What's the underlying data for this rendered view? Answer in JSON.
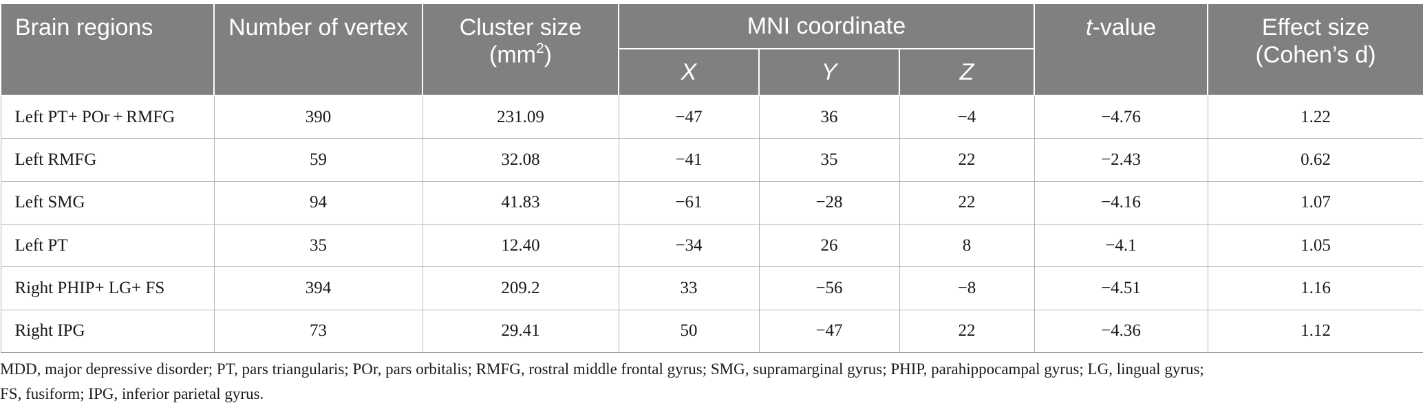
{
  "table": {
    "headers": {
      "regions": "Brain regions",
      "vertex": "Number of vertex",
      "cluster_main": "Cluster size",
      "cluster_unit": "(mm",
      "cluster_sup": "2",
      "cluster_close": ")",
      "mni": "MNI coordinate",
      "x": "X",
      "y": "Y",
      "z": "Z",
      "t_italic": "t",
      "t_rest": "-value",
      "effect_line1": "Effect size",
      "effect_line2": "(Cohen’s d)"
    },
    "rows": [
      {
        "region": "Left PT+ POr + RMFG",
        "vertex": "390",
        "cluster": "231.09",
        "x": "−47",
        "y": "36",
        "z": "−4",
        "t": "−4.76",
        "d": "1.22"
      },
      {
        "region": "Left RMFG",
        "vertex": "59",
        "cluster": "32.08",
        "x": "−41",
        "y": "35",
        "z": "22",
        "t": "−2.43",
        "d": "0.62"
      },
      {
        "region": "Left SMG",
        "vertex": "94",
        "cluster": "41.83",
        "x": "−61",
        "y": "−28",
        "z": "22",
        "t": "−4.16",
        "d": "1.07"
      },
      {
        "region": "Left PT",
        "vertex": "35",
        "cluster": "12.40",
        "x": "−34",
        "y": "26",
        "z": "8",
        "t": "−4.1",
        "d": "1.05"
      },
      {
        "region": "Right PHIP+ LG+ FS",
        "vertex": "394",
        "cluster": "209.2",
        "x": "33",
        "y": "−56",
        "z": "−8",
        "t": "−4.51",
        "d": "1.16"
      },
      {
        "region": "Right IPG",
        "vertex": "73",
        "cluster": "29.41",
        "x": "50",
        "y": "−47",
        "z": "22",
        "t": "−4.36",
        "d": "1.12"
      }
    ]
  },
  "footnote": {
    "line1": "MDD, major depressive disorder; PT, pars triangularis; POr, pars orbitalis; RMFG, rostral middle frontal gyrus; SMG, supramarginal gyrus; PHIP, parahippocampal gyrus; LG, lingual gyrus;",
    "line2": "FS, fusiform; IPG, inferior parietal gyrus."
  },
  "colors": {
    "header_bg": "#808080",
    "header_text": "#ffffff",
    "border": "#b3b3b3"
  }
}
